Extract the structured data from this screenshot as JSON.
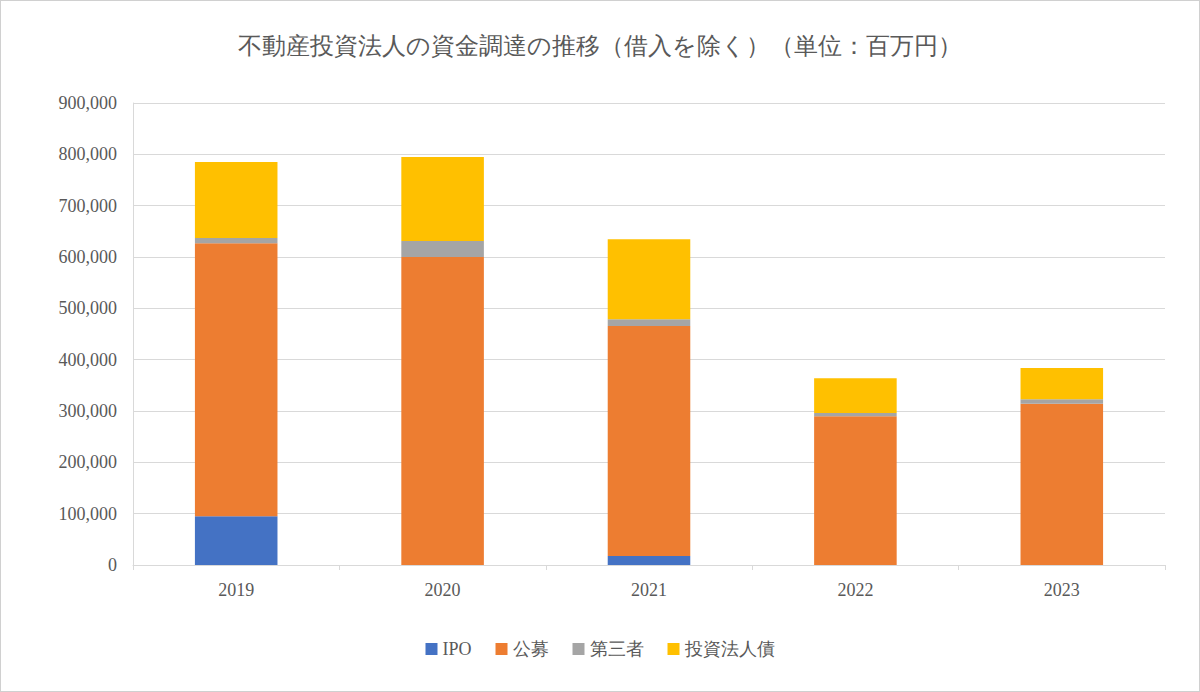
{
  "chart_data": {
    "type": "bar",
    "title": "不動産投資法人の資金調達の推移（借入を除く）（単位：百万円）",
    "categories": [
      "2019",
      "2020",
      "2021",
      "2022",
      "2023"
    ],
    "series": [
      {
        "name": "IPO",
        "color": "#4472C4",
        "values": [
          95000,
          0,
          17500,
          0,
          0
        ]
      },
      {
        "name": "公募",
        "color": "#ED7D31",
        "values": [
          532000,
          600000,
          448000,
          290000,
          314000
        ]
      },
      {
        "name": "第三者",
        "color": "#A5A5A5",
        "values": [
          10000,
          31000,
          13000,
          6000,
          9000
        ]
      },
      {
        "name": "投資法人債",
        "color": "#FFC000",
        "values": [
          148000,
          164000,
          156000,
          68000,
          61000
        ]
      }
    ],
    "stacked": true,
    "ylim": [
      0,
      900000
    ],
    "yticks": [
      0,
      {
        "value": 100000,
        "label": "100,000"
      },
      {
        "value": 200000,
        "label": "200,000"
      },
      {
        "value": 300000,
        "label": "300,000"
      },
      {
        "value": 400000,
        "label": "400,000"
      },
      {
        "value": 500000,
        "label": "500,000"
      },
      {
        "value": 600000,
        "label": "600,000"
      },
      {
        "value": 700000,
        "label": "700,000"
      },
      {
        "value": 800000,
        "label": "800,000"
      },
      {
        "value": 900000,
        "label": "900,000"
      }
    ],
    "grid": true,
    "legend": "bottom"
  }
}
